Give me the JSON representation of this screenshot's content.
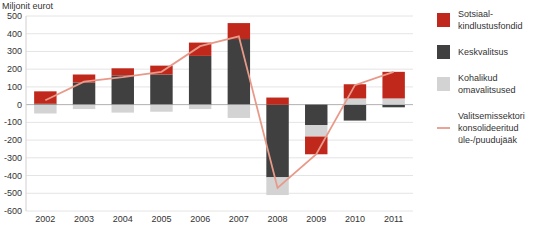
{
  "chart_data": {
    "type": "bar",
    "stacked": true,
    "grid": true,
    "legend": "right",
    "y_label": "Miljonit eurot",
    "categories": [
      "2002",
      "2003",
      "2004",
      "2005",
      "2006",
      "2007",
      "2008",
      "2009",
      "2010",
      "2011"
    ],
    "series": [
      {
        "name": "Sotsiaal-kindlustusfondid",
        "color": "#c0281c",
        "values": [
          70,
          45,
          40,
          50,
          75,
          90,
          40,
          -100,
          80,
          150
        ]
      },
      {
        "name": "Keskvalitsus",
        "color": "#404040",
        "values": [
          5,
          125,
          165,
          170,
          275,
          370,
          -410,
          -115,
          -90,
          -15
        ]
      },
      {
        "name": "Kohalikud omavalitsused",
        "color": "#d3d3d3",
        "values": [
          -50,
          -25,
          -45,
          -40,
          -25,
          -75,
          -100,
          -65,
          35,
          35
        ]
      },
      {
        "name": "Valitsemissektori konsolideeritud üle-/puudujääk",
        "type": "line",
        "color": "#e89a8a",
        "values": [
          25,
          130,
          155,
          185,
          330,
          385,
          -470,
          -280,
          110,
          185
        ]
      }
    ],
    "ylim": [
      -600,
      500
    ],
    "yticks": [
      -600,
      -500,
      -400,
      -300,
      -200,
      -100,
      0,
      100,
      200,
      300,
      400,
      500
    ]
  }
}
